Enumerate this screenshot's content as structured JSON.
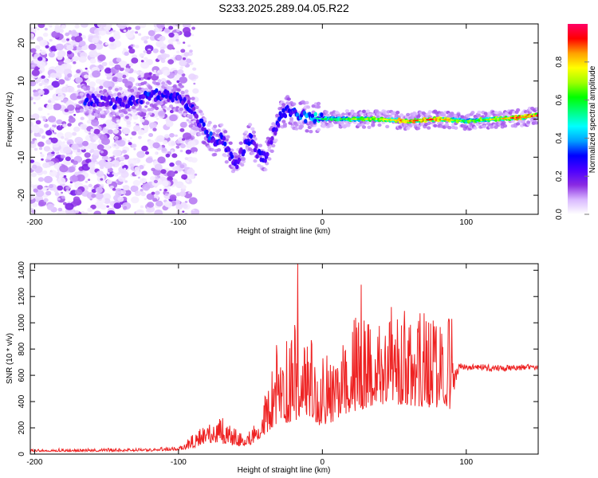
{
  "figure": {
    "title": "S233.2025.289.04.05.R22"
  },
  "chart_data": [
    {
      "type": "heatmap",
      "name": "spectrogram",
      "xlabel": "Height of straight line (km)",
      "ylabel": "Frequency (Hz)",
      "xlim": [
        -203,
        150
      ],
      "ylim": [
        -25,
        25
      ],
      "xticks": [
        -200,
        -100,
        0,
        100
      ],
      "xtick_labels": [
        "-200",
        "-100",
        "0",
        "100"
      ],
      "yticks": [
        -20,
        -10,
        0,
        10,
        20
      ],
      "ytick_labels": [
        "-20",
        "-10",
        "0",
        "10",
        "20"
      ],
      "colorbar": {
        "label": "Normalized spectral amplitude",
        "range": [
          0,
          1
        ],
        "ticks": [
          0,
          0.2,
          0.4,
          0.6,
          0.8
        ],
        "tick_labels": [
          "0.0",
          "0.2",
          "0.4",
          "0.6",
          "0.8"
        ],
        "colors": [
          "#ffffff",
          "#d9b8ff",
          "#8a2be2",
          "#4b00ff",
          "#0000ff",
          "#00a0ff",
          "#00ffff",
          "#00ff80",
          "#00ff00",
          "#a0ff00",
          "#ffff00",
          "#ffa000",
          "#ff0000",
          "#ff0066"
        ]
      },
      "ridge": {
        "x": [
          -160,
          -150,
          -140,
          -130,
          -120,
          -110,
          -100,
          -95,
          -90,
          -85,
          -80,
          -75,
          -70,
          -65,
          -60,
          -55,
          -50,
          -45,
          -40,
          -35,
          -30,
          -25,
          -20,
          -10,
          0,
          20,
          40,
          60,
          80,
          100,
          120,
          140,
          150
        ],
        "freq": [
          5,
          4.5,
          4,
          5,
          6,
          6.5,
          5.5,
          4.5,
          2,
          -1,
          -4,
          -6,
          -5,
          -9,
          -12,
          -8,
          -5,
          -9,
          -10,
          -5,
          0,
          2,
          1.5,
          0.5,
          0,
          0,
          0,
          -0.5,
          0,
          -0.5,
          0,
          0.5,
          1
        ],
        "amplitude": [
          0.3,
          0.25,
          0.3,
          0.28,
          0.32,
          0.3,
          0.28,
          0.3,
          0.27,
          0.3,
          0.35,
          0.28,
          0.3,
          0.3,
          0.25,
          0.28,
          0.3,
          0.3,
          0.25,
          0.22,
          0.3,
          0.3,
          0.35,
          0.4,
          0.5,
          0.6,
          0.7,
          0.8,
          0.8,
          0.6,
          0.7,
          0.85,
          0.9
        ]
      }
    },
    {
      "type": "line",
      "name": "snr",
      "xlabel": "Height of straight line (km)",
      "ylabel": "SNR (10 * v/v)",
      "xlim": [
        -203,
        150
      ],
      "ylim": [
        0,
        1450
      ],
      "xticks": [
        -200,
        -100,
        0,
        100
      ],
      "xtick_labels": [
        "-200",
        "-100",
        "0",
        "100"
      ],
      "yticks": [
        0,
        200,
        400,
        600,
        800,
        1000,
        1200,
        1400
      ],
      "ytick_labels": [
        "0",
        "200",
        "400",
        "600",
        "800",
        "1000",
        "1200",
        "1400"
      ],
      "color": "#ee2222",
      "envelope": {
        "x": [
          -203,
          -150,
          -120,
          -100,
          -90,
          -80,
          -70,
          -60,
          -50,
          -40,
          -35,
          -30,
          -25,
          -20,
          -10,
          0,
          10,
          20,
          30,
          40,
          50,
          60,
          70,
          80,
          90,
          92,
          95,
          100,
          120,
          150
        ],
        "baseline": [
          20,
          20,
          22,
          30,
          45,
          90,
          80,
          60,
          70,
          150,
          200,
          220,
          200,
          250,
          300,
          200,
          260,
          320,
          350,
          380,
          380,
          370,
          360,
          350,
          340,
          520,
          640,
          640,
          630,
          640
        ],
        "peak": [
          40,
          45,
          45,
          60,
          150,
          250,
          280,
          200,
          180,
          420,
          640,
          800,
          700,
          1000,
          900,
          780,
          950,
          1200,
          1000,
          1050,
          1100,
          1050,
          1100,
          1000,
          1050,
          700,
          690,
          690,
          680,
          690
        ]
      },
      "spikes": [
        {
          "x": -40,
          "y": 440
        },
        {
          "x": -35,
          "y": 630
        },
        {
          "x": -32,
          "y": 830
        },
        {
          "x": -25,
          "y": 860
        },
        {
          "x": -17,
          "y": 1450
        },
        {
          "x": 27,
          "y": 1290
        },
        {
          "x": 48,
          "y": 1120
        },
        {
          "x": 57,
          "y": 1090
        },
        {
          "x": 90,
          "y": 1030
        }
      ]
    }
  ]
}
